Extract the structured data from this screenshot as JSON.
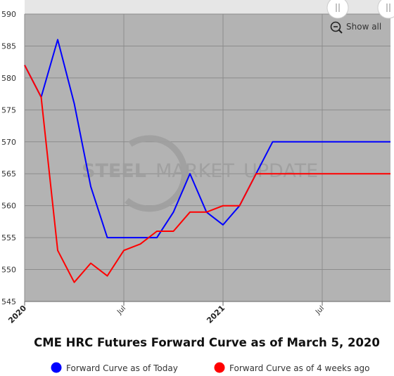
{
  "chart_data": {
    "type": "line",
    "title": "CME HRC Futures Forward Curve as of March 5, 2020",
    "xlabel": "",
    "ylabel": "",
    "x_start": "2020-01",
    "x_range": [
      "2020-01",
      "2021-10"
    ],
    "ylim": [
      545,
      590
    ],
    "yticks": [
      545,
      550,
      555,
      560,
      565,
      570,
      575,
      580,
      585,
      590
    ],
    "xticks": [
      {
        "month": "2020-01",
        "label": "2020",
        "major": true
      },
      {
        "month": "2020-07",
        "label": "Jul",
        "major": false
      },
      {
        "month": "2021-01",
        "label": "2021",
        "major": true
      },
      {
        "month": "2021-07",
        "label": "Jul",
        "major": false
      }
    ],
    "categories": [
      "2020-01",
      "2020-02",
      "2020-03",
      "2020-04",
      "2020-05",
      "2020-06",
      "2020-07",
      "2020-08",
      "2020-09",
      "2020-10",
      "2020-11",
      "2020-12",
      "2021-01",
      "2021-02",
      "2021-03",
      "2021-04",
      "2021-05",
      "2021-06",
      "2021-07",
      "2021-08",
      "2021-09",
      "2021-10"
    ],
    "series": [
      {
        "name": "Forward Curve as of Today",
        "color": "#0000ff",
        "values": [
          582,
          577,
          586,
          576,
          563,
          555,
          555,
          555,
          555,
          559,
          565,
          559,
          557,
          560,
          565,
          570,
          570,
          570,
          570,
          570,
          570,
          570
        ]
      },
      {
        "name": "Forward Curve as of 4 weeks ago",
        "color": "#ff0000",
        "values": [
          582,
          577,
          553,
          548,
          551,
          549,
          553,
          554,
          556,
          556,
          559,
          559,
          560,
          560,
          565,
          565,
          565,
          565,
          565,
          565,
          565,
          565
        ]
      }
    ],
    "grid": true,
    "legend_position": "bottom"
  },
  "toolbar": {
    "show_all_label": "Show all"
  },
  "watermark": {
    "part1": "STEEL",
    "part2": "MARKET",
    "part3": "UPDATE"
  },
  "colors": {
    "plot_bg": "#b3b3b3",
    "navigator_bg": "#e6e6e6",
    "grid": "#8c8c8c"
  }
}
